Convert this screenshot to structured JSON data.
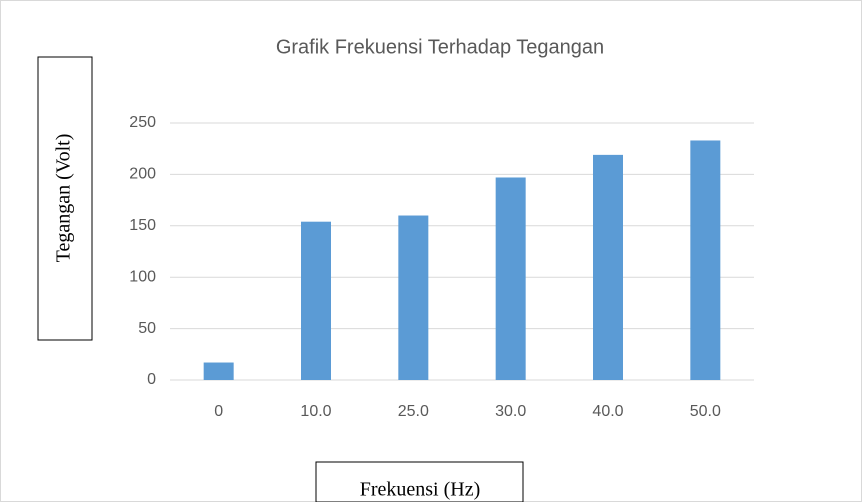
{
  "chart_data": {
    "type": "bar",
    "title": "Grafik Frekuensi Terhadap Tegangan",
    "x_label": "Frekuensi (Hz)",
    "y_label": "Tegangan (Volt)",
    "categories": [
      "0",
      "10.0",
      "25.0",
      "30.0",
      "40.0",
      "50.0"
    ],
    "values": [
      17,
      154,
      160,
      197,
      219,
      233
    ],
    "color": "#5b9bd5",
    "ylim": [
      0,
      250
    ],
    "yticks": [
      0,
      50,
      100,
      150,
      200,
      250
    ],
    "grid": true
  }
}
